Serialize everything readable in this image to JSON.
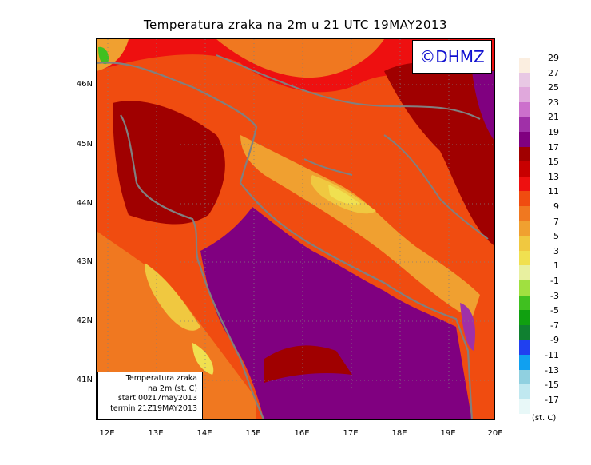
{
  "title": "Temperatura zraka na 2m u 21 UTC 19MAY2013",
  "logo": "©DHMZ",
  "info_box": {
    "line1": "Temperatura zraka",
    "line2": "na 2m (st. C)",
    "line3": "start 00z17may2013",
    "line4": "termin 21Z19MAY2013"
  },
  "lat_labels": [
    "46N",
    "45N",
    "44N",
    "43N",
    "42N",
    "41N"
  ],
  "lon_labels": [
    "12E",
    "13E",
    "14E",
    "15E",
    "16E",
    "17E",
    "18E",
    "19E",
    "20E"
  ],
  "legend": {
    "labels": [
      "29",
      "27",
      "25",
      "23",
      "21",
      "19",
      "17",
      "15",
      "13",
      "11",
      "9",
      "7",
      "5",
      "3",
      "1",
      "-1",
      "-3",
      "-5",
      "-7",
      "-9",
      "-11",
      "-13",
      "-15",
      "-17"
    ],
    "colors": [
      "#fbeee0",
      "#e8c8e4",
      "#e0a8dc",
      "#cc70cc",
      "#a030a8",
      "#800080",
      "#a00000",
      "#c80000",
      "#ee1010",
      "#f04c10",
      "#f07820",
      "#f0a030",
      "#f0c840",
      "#f0e050",
      "#e8f0a0",
      "#a0e040",
      "#40c020",
      "#10a010",
      "#108030",
      "#2040f0",
      "#10a0f0",
      "#90d0e0",
      "#c0e8f0",
      "#e8f8f8"
    ],
    "unit": "(st. C)"
  },
  "colors": {
    "sea": "#800080",
    "coast": "#808080"
  }
}
